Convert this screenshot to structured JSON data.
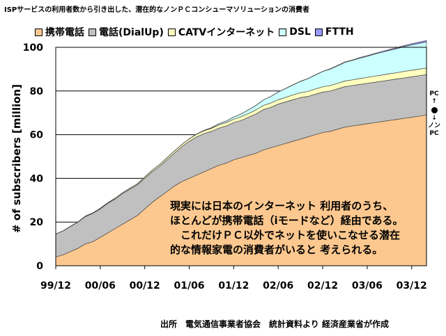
{
  "page_title": "ISPサービスの利用者数から引き出した、潜在的なノンＰＣコンシューマソリューションの消費者",
  "note_lines": [
    "現実には日本のインターネット 利用者のうち、",
    "ほとんどが携帯電話（iモードなど）経由である。",
    "　これだけＰＣ以外でネットを使いこなせる潜在",
    "的な情報家電の消費者がいると 考えられる。"
  ],
  "side_annotation": {
    "top": "PC",
    "up_arrow": "↑",
    "down_arrow": "↓",
    "bottom_1": "ノン",
    "bottom_2": "PC"
  },
  "source": "出所　電気通信事業者協会　統計資料より 経済産業省が作成",
  "chart_data": {
    "type": "area",
    "stacked": true,
    "ylabel": "# of subscribers [million]",
    "xlabel": "",
    "ylim": [
      0,
      100
    ],
    "yticks": [
      0,
      20,
      40,
      60,
      80,
      100
    ],
    "x_tick_labels": [
      "99/12",
      "00/06",
      "00/12",
      "01/06",
      "01/12",
      "02/06",
      "02/12",
      "03/06",
      "03/12"
    ],
    "x_tick_index": [
      0,
      6,
      12,
      18,
      24,
      30,
      36,
      42,
      48
    ],
    "grid": true,
    "legend_position": "top",
    "x_start": "1999-12",
    "x_end": "2004-02",
    "series": [
      {
        "name": "携帯電話",
        "color": "#fcc88f",
        "values": [
          4,
          5,
          6.5,
          8,
          10,
          11,
          13,
          15,
          17,
          19,
          21,
          23,
          26,
          29,
          31.5,
          34,
          36.5,
          38.5,
          40,
          41.5,
          43,
          44.5,
          46,
          47,
          48.5,
          49.5,
          50.5,
          51.5,
          53,
          54,
          55,
          56,
          57,
          58,
          59,
          60,
          61,
          61.5,
          62.5,
          63.5,
          64,
          64.5,
          65,
          65.5,
          66,
          66.5,
          67,
          67.5,
          68,
          68.5,
          69
        ]
      },
      {
        "name": "電話(DialUp)",
        "color": "#c0c0c0",
        "values": [
          10.5,
          11,
          11.5,
          12,
          12.5,
          13,
          13,
          13.5,
          13.5,
          14,
          14,
          14,
          14,
          14,
          14,
          14.5,
          15,
          16,
          17,
          17.5,
          17.5,
          17,
          17,
          17,
          17,
          17,
          17.5,
          18,
          18.5,
          18.5,
          19,
          19,
          19,
          19,
          18.5,
          18.5,
          18.5,
          18.5,
          18.5,
          18.5,
          18.5,
          18.5,
          18.5,
          18.5,
          18.5,
          18.5,
          18.5,
          18.5,
          18.5,
          18.5,
          18.5
        ]
      },
      {
        "name": "CATVインターネット",
        "color": "#ffffc0",
        "values": [
          0,
          0,
          0.1,
          0.1,
          0.2,
          0.2,
          0.3,
          0.3,
          0.4,
          0.4,
          0.5,
          0.5,
          0.6,
          0.7,
          0.8,
          0.9,
          1,
          1,
          1.1,
          1.2,
          1.3,
          1.4,
          1.5,
          1.5,
          1.6,
          1.7,
          1.7,
          1.8,
          1.9,
          2,
          2,
          2.1,
          2.2,
          2.2,
          2.3,
          2.4,
          2.4,
          2.5,
          2.5,
          2.6,
          2.6,
          2.7,
          2.7,
          2.8,
          2.8,
          2.9,
          2.9,
          3,
          3,
          3,
          3
        ]
      },
      {
        "name": "DSL",
        "color": "#ccffff",
        "values": [
          0,
          0,
          0,
          0,
          0,
          0,
          0,
          0,
          0,
          0,
          0,
          0,
          0,
          0,
          0,
          0,
          0,
          0,
          0,
          0.1,
          0.2,
          0.3,
          0.5,
          0.7,
          1,
          1.3,
          1.7,
          2.1,
          2.5,
          3,
          3.5,
          4,
          4.6,
          5.2,
          5.8,
          6.4,
          7,
          7.5,
          8,
          8.5,
          8.9,
          9.3,
          9.7,
          10.1,
          10.4,
          10.7,
          11,
          11.3,
          11.6,
          11.8,
          12
        ]
      },
      {
        "name": "FTTH",
        "color": "#9999ff",
        "values": [
          0,
          0,
          0,
          0,
          0,
          0,
          0,
          0,
          0,
          0,
          0,
          0,
          0,
          0,
          0,
          0,
          0,
          0,
          0,
          0,
          0,
          0,
          0,
          0,
          0,
          0,
          0,
          0,
          0,
          0,
          0,
          0.1,
          0.1,
          0.1,
          0.1,
          0.1,
          0.1,
          0.2,
          0.2,
          0.2,
          0.2,
          0.3,
          0.3,
          0.3,
          0.4,
          0.4,
          0.4,
          0.5,
          0.5,
          0.6,
          0.6
        ]
      }
    ]
  }
}
